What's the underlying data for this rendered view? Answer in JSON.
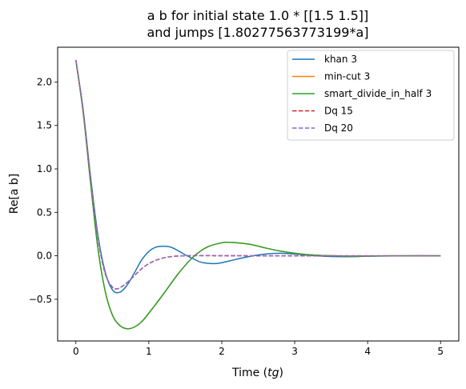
{
  "chart_data": {
    "type": "line",
    "title_lines": [
      "a b for initial state 1.0 * [[1.5 1.5]]",
      "and jumps [1.80277563773199*a]"
    ],
    "xlabel_main": "Time (",
    "xlabel_var": "tg",
    "xlabel_close": ")",
    "ylabel": "Re[a b]",
    "xlim": [
      -0.25,
      5.25
    ],
    "ylim": [
      -0.98,
      2.4
    ],
    "xticks": [
      0,
      1,
      2,
      3,
      4,
      5
    ],
    "xtick_labels": [
      "0",
      "1",
      "2",
      "3",
      "4",
      "5"
    ],
    "yticks": [
      -0.5,
      0.0,
      0.5,
      1.0,
      1.5,
      2.0
    ],
    "ytick_labels": [
      "−0.5",
      "0.0",
      "0.5",
      "1.0",
      "1.5",
      "2.0"
    ],
    "grid": false,
    "legend_position": "top-right",
    "series": [
      {
        "name": "khan 3",
        "color": "#1f77b4",
        "dash": "solid",
        "x": [
          0,
          0.1,
          0.2,
          0.3,
          0.4,
          0.5,
          0.6,
          0.7,
          0.8,
          0.9,
          1.0,
          1.1,
          1.2,
          1.3,
          1.4,
          1.5,
          1.6,
          1.7,
          1.8,
          1.9,
          2.0,
          2.2,
          2.4,
          2.6,
          2.8,
          3.0,
          3.2,
          3.4,
          3.6,
          3.8,
          4.0,
          4.5,
          5.0
        ],
        "y": [
          2.25,
          1.68,
          0.92,
          0.25,
          -0.18,
          -0.39,
          -0.42,
          -0.34,
          -0.2,
          -0.05,
          0.05,
          0.1,
          0.11,
          0.1,
          0.06,
          0.01,
          -0.03,
          -0.07,
          -0.085,
          -0.09,
          -0.08,
          -0.04,
          -0.005,
          0.02,
          0.03,
          0.02,
          0.005,
          -0.005,
          -0.01,
          -0.01,
          -0.005,
          0.0,
          0.0
        ]
      },
      {
        "name": "min-cut 3",
        "color": "#ff7f0e",
        "dash": "solid",
        "x": [
          0,
          0.1,
          0.2,
          0.3,
          0.4,
          0.5,
          0.6,
          0.7,
          0.8,
          0.9,
          1.0,
          1.2,
          1.4,
          1.6,
          1.8,
          2.0,
          2.1,
          2.2,
          2.4,
          2.6,
          2.8,
          3.0,
          3.2,
          3.4,
          3.6,
          3.8,
          4.0,
          4.5,
          5.0
        ],
        "y": [
          2.25,
          1.65,
          0.85,
          0.1,
          -0.4,
          -0.68,
          -0.8,
          -0.84,
          -0.82,
          -0.76,
          -0.66,
          -0.44,
          -0.21,
          -0.02,
          0.1,
          0.15,
          0.155,
          0.15,
          0.13,
          0.09,
          0.055,
          0.03,
          0.012,
          0.003,
          -0.002,
          -0.004,
          -0.003,
          0.0,
          0.0
        ]
      },
      {
        "name": "smart_divide_in_half 3",
        "color": "#2ca02c",
        "dash": "solid",
        "x": [
          0,
          0.1,
          0.2,
          0.3,
          0.4,
          0.5,
          0.6,
          0.7,
          0.8,
          0.9,
          1.0,
          1.2,
          1.4,
          1.6,
          1.8,
          2.0,
          2.1,
          2.2,
          2.4,
          2.6,
          2.8,
          3.0,
          3.2,
          3.4,
          3.6,
          3.8,
          4.0,
          4.5,
          5.0
        ],
        "y": [
          2.25,
          1.65,
          0.85,
          0.1,
          -0.4,
          -0.68,
          -0.8,
          -0.84,
          -0.82,
          -0.76,
          -0.66,
          -0.44,
          -0.21,
          -0.02,
          0.1,
          0.15,
          0.155,
          0.15,
          0.13,
          0.09,
          0.055,
          0.03,
          0.012,
          0.003,
          -0.002,
          -0.004,
          -0.003,
          0.0,
          0.0
        ]
      },
      {
        "name": "Dq 15",
        "color": "#d62728",
        "dash": "dashed",
        "x": [
          0,
          0.1,
          0.2,
          0.3,
          0.4,
          0.5,
          0.55,
          0.6,
          0.7,
          0.8,
          0.9,
          1.0,
          1.1,
          1.2,
          1.3,
          1.4,
          1.5,
          1.6,
          1.8,
          2.0,
          2.5,
          3.0,
          4.0,
          5.0
        ],
        "y": [
          2.25,
          1.66,
          0.9,
          0.22,
          -0.2,
          -0.36,
          -0.38,
          -0.37,
          -0.31,
          -0.23,
          -0.15,
          -0.09,
          -0.05,
          -0.025,
          -0.01,
          -0.003,
          0.0,
          0.002,
          0.002,
          0.001,
          0.0,
          0.0,
          0.0,
          0.0
        ]
      },
      {
        "name": "Dq 20",
        "color": "#9467bd",
        "dash": "dashed",
        "x": [
          0,
          0.1,
          0.2,
          0.3,
          0.4,
          0.5,
          0.55,
          0.6,
          0.7,
          0.8,
          0.9,
          1.0,
          1.1,
          1.2,
          1.3,
          1.4,
          1.5,
          1.6,
          1.8,
          2.0,
          2.5,
          3.0,
          4.0,
          5.0
        ],
        "y": [
          2.25,
          1.66,
          0.9,
          0.22,
          -0.2,
          -0.36,
          -0.38,
          -0.37,
          -0.31,
          -0.23,
          -0.15,
          -0.09,
          -0.05,
          -0.025,
          -0.01,
          -0.003,
          0.0,
          0.002,
          0.002,
          0.001,
          0.0,
          0.0,
          0.0,
          0.0
        ]
      }
    ]
  }
}
